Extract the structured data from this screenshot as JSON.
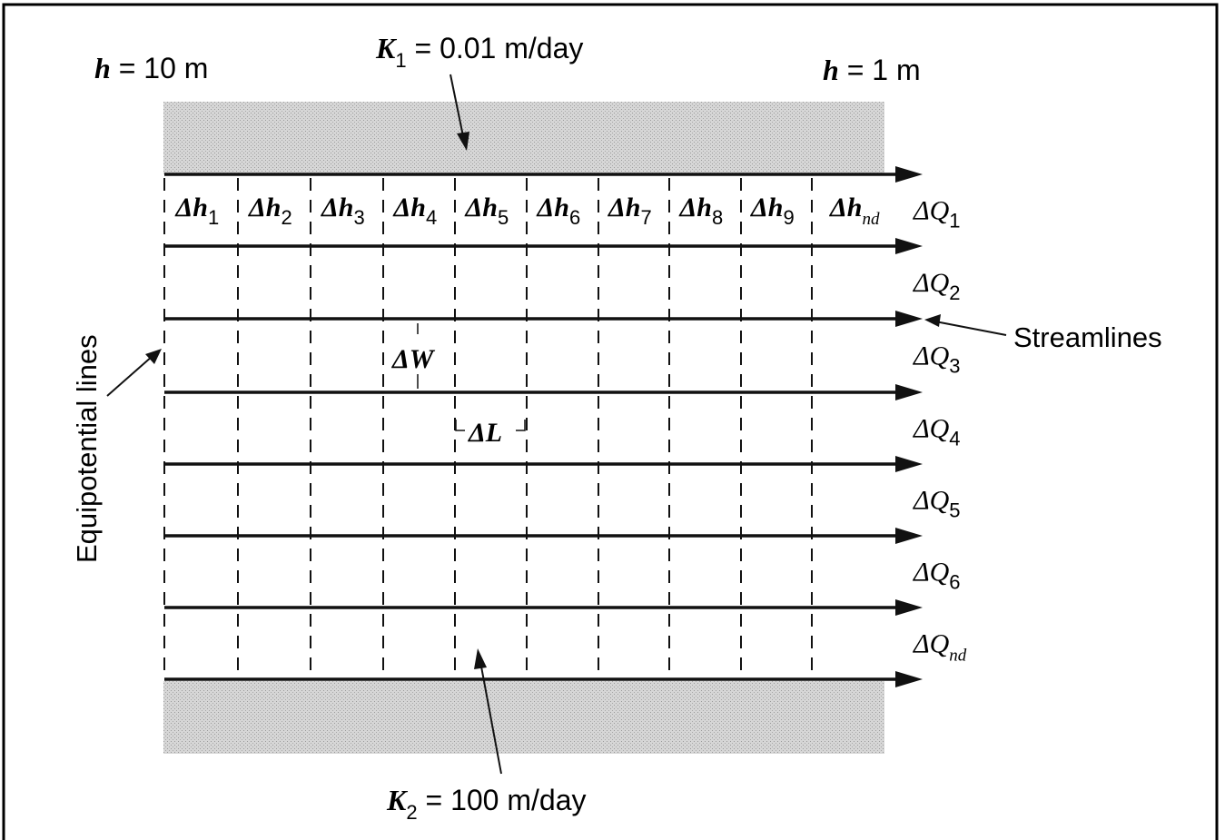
{
  "top_labels": {
    "h_left": {
      "sym": "h",
      "rest": " = 10 m"
    },
    "k1": {
      "sym": "K",
      "sub": "1",
      "rest": " = 0.01 m/day"
    },
    "h_right": {
      "sym": "h",
      "rest": " = 1 m"
    }
  },
  "bottom_label": {
    "sym": "K",
    "sub": "2",
    "rest": " = 100 m/day"
  },
  "head_drops": [
    {
      "sym": "Δh",
      "sub": "1"
    },
    {
      "sym": "Δh",
      "sub": "2"
    },
    {
      "sym": "Δh",
      "sub": "3"
    },
    {
      "sym": "Δh",
      "sub": "4"
    },
    {
      "sym": "Δh",
      "sub": "5"
    },
    {
      "sym": "Δh",
      "sub": "6"
    },
    {
      "sym": "Δh",
      "sub": "7"
    },
    {
      "sym": "Δh",
      "sub": "8"
    },
    {
      "sym": "Δh",
      "sub": "9"
    },
    {
      "sym": "Δh",
      "sub": "nd"
    }
  ],
  "flows": [
    {
      "sym": "ΔQ",
      "sub": "1"
    },
    {
      "sym": "ΔQ",
      "sub": "2"
    },
    {
      "sym": "ΔQ",
      "sub": "3"
    },
    {
      "sym": "ΔQ",
      "sub": "4"
    },
    {
      "sym": "ΔQ",
      "sub": "5"
    },
    {
      "sym": "ΔQ",
      "sub": "6"
    },
    {
      "sym": "ΔQ",
      "sub": "nd"
    }
  ],
  "cell_labels": {
    "width": "ΔW",
    "length": "ΔL"
  },
  "callouts": {
    "streamlines": "Streamlines",
    "equipotential": "Equipotential lines"
  },
  "colors": {
    "line": "#111111",
    "shade": "#c9c9c9",
    "frame": "#000000"
  }
}
